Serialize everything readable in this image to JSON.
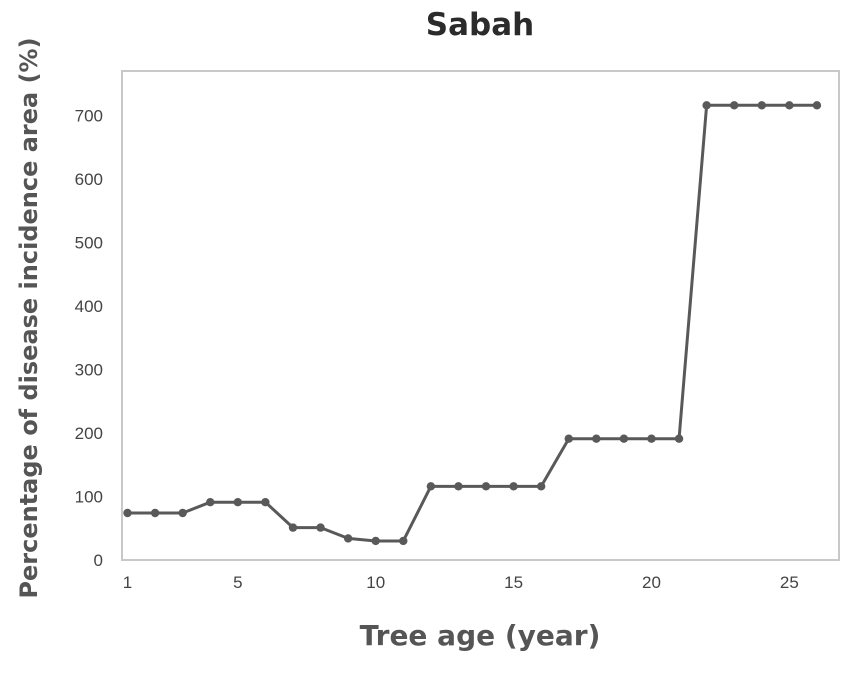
{
  "chart_data": {
    "type": "line",
    "title": "Sabah",
    "xlabel": "Tree age (year)",
    "ylabel": "Percentage of disease incidence area (%)",
    "x": [
      1,
      2,
      3,
      4,
      5,
      6,
      7,
      8,
      9,
      10,
      11,
      12,
      13,
      14,
      15,
      16,
      17,
      18,
      19,
      20,
      21,
      22,
      23,
      24,
      25,
      26
    ],
    "series": [
      {
        "values": [
          74,
          74,
          74,
          91,
          91,
          91,
          51,
          51,
          34,
          30,
          30,
          116,
          116,
          116,
          116,
          116,
          191,
          191,
          191,
          191,
          191,
          716,
          716,
          716,
          716,
          716
        ]
      }
    ],
    "xticks": [
      1,
      5,
      10,
      15,
      20,
      25
    ],
    "xtick_labels": [
      "1",
      "5",
      "10",
      "15",
      "20",
      "25"
    ],
    "yticks": [
      0,
      100,
      200,
      300,
      400,
      500,
      600,
      700
    ],
    "ytick_labels": [
      "0",
      "100",
      "200",
      "300",
      "400",
      "500",
      "600",
      "700"
    ],
    "xlim": [
      0.8,
      26.8
    ],
    "ylim": [
      0,
      770
    ],
    "grid": false,
    "legend": "none",
    "line_color": "#595959",
    "frame_color": "#c8c8c8"
  }
}
